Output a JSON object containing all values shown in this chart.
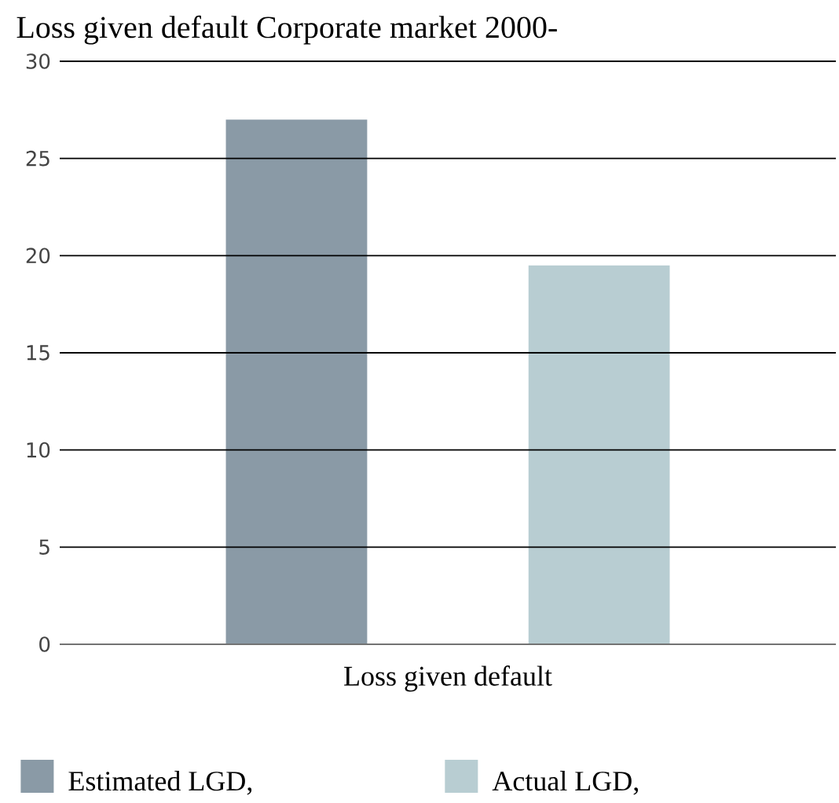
{
  "chart_data": {
    "type": "bar",
    "title": "Loss given default Corporate market 2000-",
    "categories": [
      "Loss given default"
    ],
    "series": [
      {
        "name": "Estimated LGD,",
        "color": "#8a9aa6",
        "values": [
          27
        ]
      },
      {
        "name": "Actual LGD,",
        "color": "#b8cdd2",
        "values": [
          19.5
        ]
      }
    ],
    "ylim": [
      0,
      30
    ],
    "yticks": [
      0,
      5,
      10,
      15,
      20,
      25,
      30
    ],
    "grid": "y",
    "legend": "bottom"
  }
}
